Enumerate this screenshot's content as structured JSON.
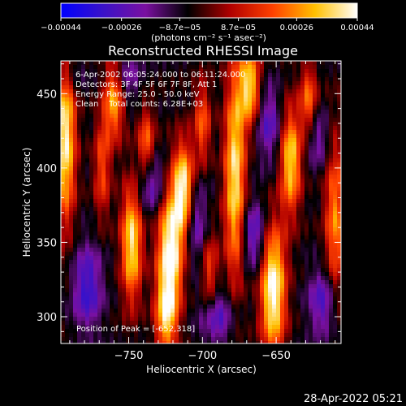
{
  "chart_data": {
    "type": "heatmap",
    "title": "Reconstructed RHESSI Image",
    "xlabel": "Heliocentric X (arcsec)",
    "ylabel": "Heliocentric Y (arcsec)",
    "xlim": [
      -796,
      -606
    ],
    "ylim": [
      282,
      472
    ],
    "x_ticks": [
      -750,
      -700,
      -650
    ],
    "y_ticks": [
      300,
      350,
      400,
      450
    ],
    "x_tick_labels": [
      "−750",
      "−700",
      "−650"
    ],
    "y_tick_labels": [
      "300",
      "350",
      "400",
      "450"
    ],
    "colorbar": {
      "range": [
        -0.00044,
        0.00044
      ],
      "ticks": [
        -0.00044,
        -0.00026,
        -8.7e-05,
        8.7e-05,
        0.00026,
        0.00044
      ],
      "tick_labels": [
        "−0.00044",
        "−0.00026",
        "−8.7e−05",
        "8.7e−05",
        "0.00026",
        "0.00044"
      ],
      "units": "(photons cm⁻² s⁻¹ asec⁻²)",
      "colors": [
        "#0000ff",
        "#3a12c8",
        "#7a10a0",
        "#000000",
        "#b00000",
        "#ff4000",
        "#ffc000",
        "#ffffff"
      ]
    },
    "annotations": [
      "6-Apr-2002 06:05:24.000 to 06:11:24.000",
      "Detectors: 3F 4F 5F 6F 7F 8F, Att 1",
      "Energy Range: 25.0 - 50.0 keV",
      "Clean    Total counts: 6.28E+03"
    ],
    "peak_label": "Position of Peak = [-652,318]",
    "peak": [
      -652,
      318
    ],
    "bright_sources": [
      {
        "x": -793,
        "y": 420,
        "amp": 0.9,
        "sx": 5,
        "sy": 40
      },
      {
        "x": -760,
        "y": 450,
        "amp": 0.8,
        "sx": 5,
        "sy": 20
      },
      {
        "x": -768,
        "y": 400,
        "amp": 0.45,
        "sx": 4,
        "sy": 25
      },
      {
        "x": -748,
        "y": 350,
        "amp": 0.85,
        "sx": 5,
        "sy": 28
      },
      {
        "x": -738,
        "y": 415,
        "amp": 0.55,
        "sx": 4,
        "sy": 18
      },
      {
        "x": -722,
        "y": 342,
        "amp": 1.0,
        "sx": 6,
        "sy": 30
      },
      {
        "x": -713,
        "y": 385,
        "amp": 0.95,
        "sx": 5,
        "sy": 22
      },
      {
        "x": -725,
        "y": 300,
        "amp": 0.6,
        "sx": 5,
        "sy": 18
      },
      {
        "x": -700,
        "y": 430,
        "amp": 0.5,
        "sx": 4,
        "sy": 20
      },
      {
        "x": -678,
        "y": 395,
        "amp": 0.85,
        "sx": 5,
        "sy": 50
      },
      {
        "x": -668,
        "y": 455,
        "amp": 0.8,
        "sx": 5,
        "sy": 18
      },
      {
        "x": -695,
        "y": 330,
        "amp": 0.45,
        "sx": 4,
        "sy": 20
      },
      {
        "x": -652,
        "y": 318,
        "amp": 1.0,
        "sx": 6,
        "sy": 30
      },
      {
        "x": -640,
        "y": 405,
        "amp": 0.8,
        "sx": 5,
        "sy": 25
      },
      {
        "x": -628,
        "y": 445,
        "amp": 0.55,
        "sx": 4,
        "sy": 18
      },
      {
        "x": -610,
        "y": 365,
        "amp": 0.6,
        "sx": 5,
        "sy": 40
      }
    ],
    "dark_sources": [
      {
        "x": -778,
        "y": 320,
        "amp": 0.9,
        "sx": 7,
        "sy": 20
      },
      {
        "x": -735,
        "y": 390,
        "amp": 0.8,
        "sx": 7,
        "sy": 14
      },
      {
        "x": -755,
        "y": 460,
        "amp": 0.7,
        "sx": 8,
        "sy": 12
      },
      {
        "x": -705,
        "y": 365,
        "amp": 0.7,
        "sx": 6,
        "sy": 20
      },
      {
        "x": -690,
        "y": 300,
        "amp": 0.75,
        "sx": 8,
        "sy": 14
      },
      {
        "x": -665,
        "y": 355,
        "amp": 0.8,
        "sx": 6,
        "sy": 16
      },
      {
        "x": -655,
        "y": 430,
        "amp": 0.7,
        "sx": 6,
        "sy": 18
      },
      {
        "x": -618,
        "y": 310,
        "amp": 0.8,
        "sx": 7,
        "sy": 16
      },
      {
        "x": -622,
        "y": 420,
        "amp": 0.6,
        "sx": 6,
        "sy": 14
      },
      {
        "x": -790,
        "y": 465,
        "amp": 0.5,
        "sx": 6,
        "sy": 10
      }
    ]
  },
  "footer": {
    "timestamp": "28-Apr-2022 05:21"
  }
}
